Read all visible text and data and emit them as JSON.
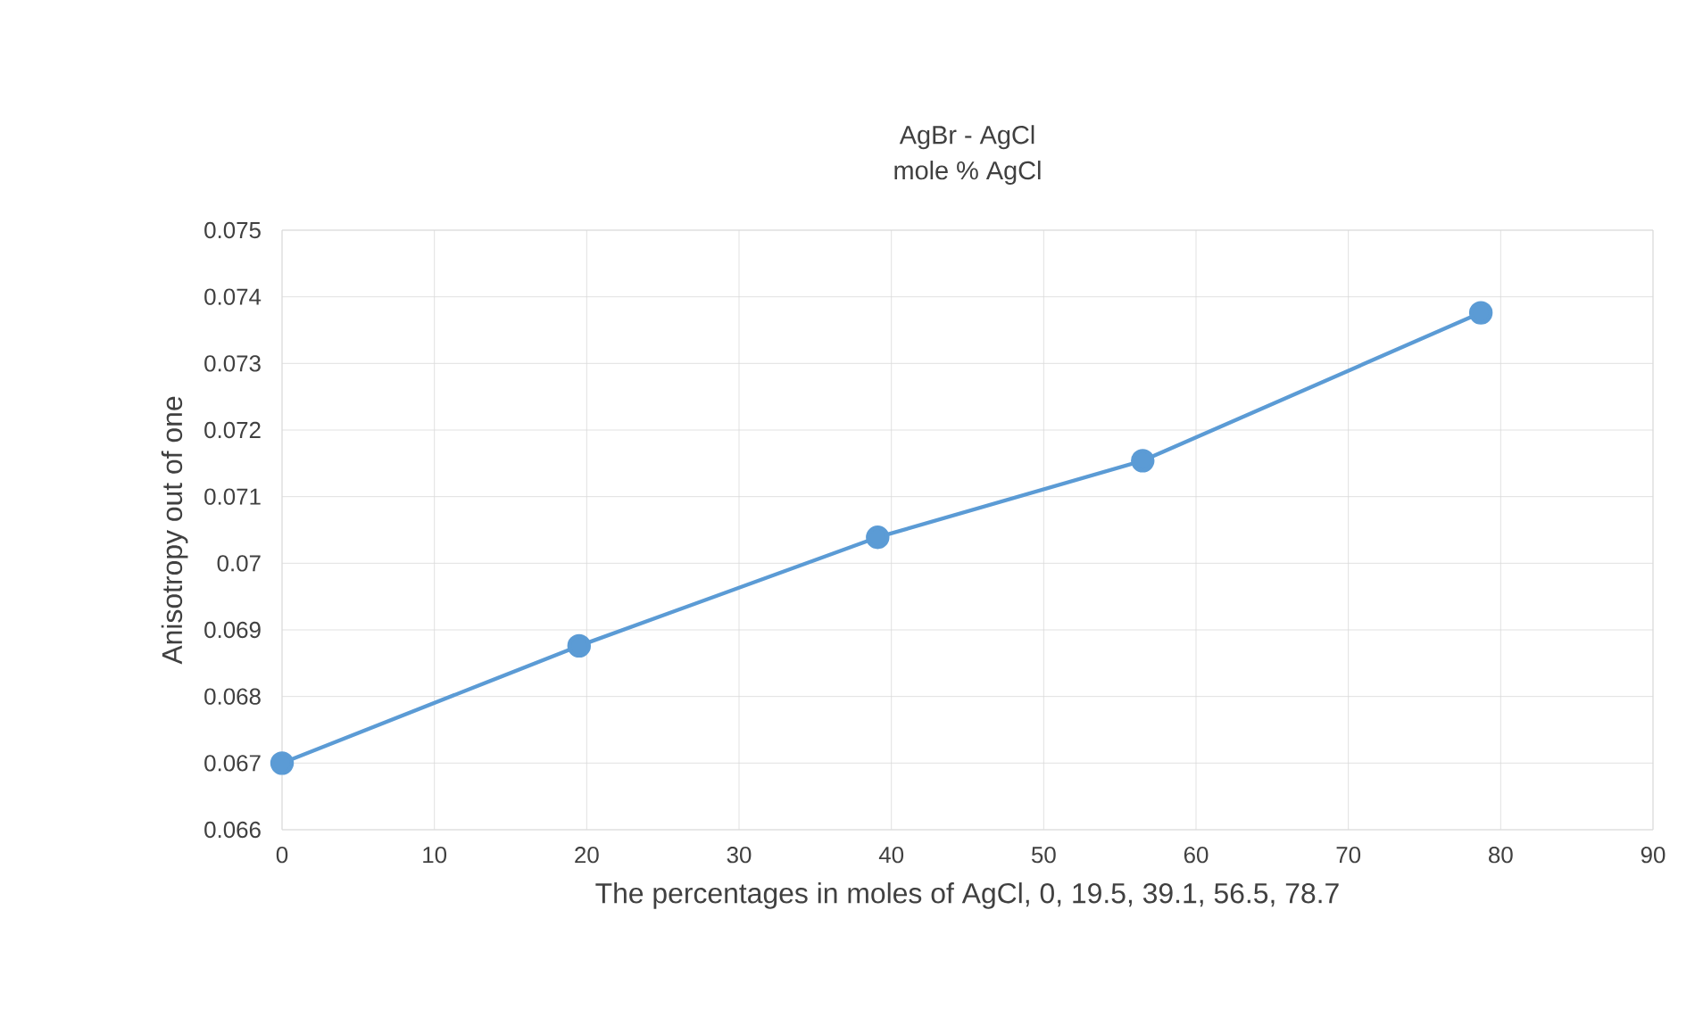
{
  "chart_data": {
    "type": "line",
    "title": "AgBr - AgCl",
    "subtitle": "mole % AgCl",
    "xlabel": "The percentages in moles of AgCl, 0, 19.5, 39.1, 56.5, 78.7",
    "ylabel": "Anisotropy out of one",
    "x": [
      0,
      19.5,
      39.1,
      56.5,
      78.7
    ],
    "series": [
      {
        "color": "#5b9bd5",
        "values": [
          0.067,
          0.06876,
          0.07039,
          0.07154,
          0.07376
        ]
      }
    ],
    "xlim": [
      0,
      90
    ],
    "xticks": [
      0,
      10,
      20,
      30,
      40,
      50,
      60,
      70,
      80,
      90
    ],
    "ylim": [
      0.066,
      0.075
    ],
    "yticks": [
      0.066,
      0.067,
      0.068,
      0.069,
      0.07,
      0.071,
      0.072,
      0.073,
      0.074,
      0.075
    ],
    "grid": true,
    "marker": "circle",
    "line_style": "solid"
  }
}
